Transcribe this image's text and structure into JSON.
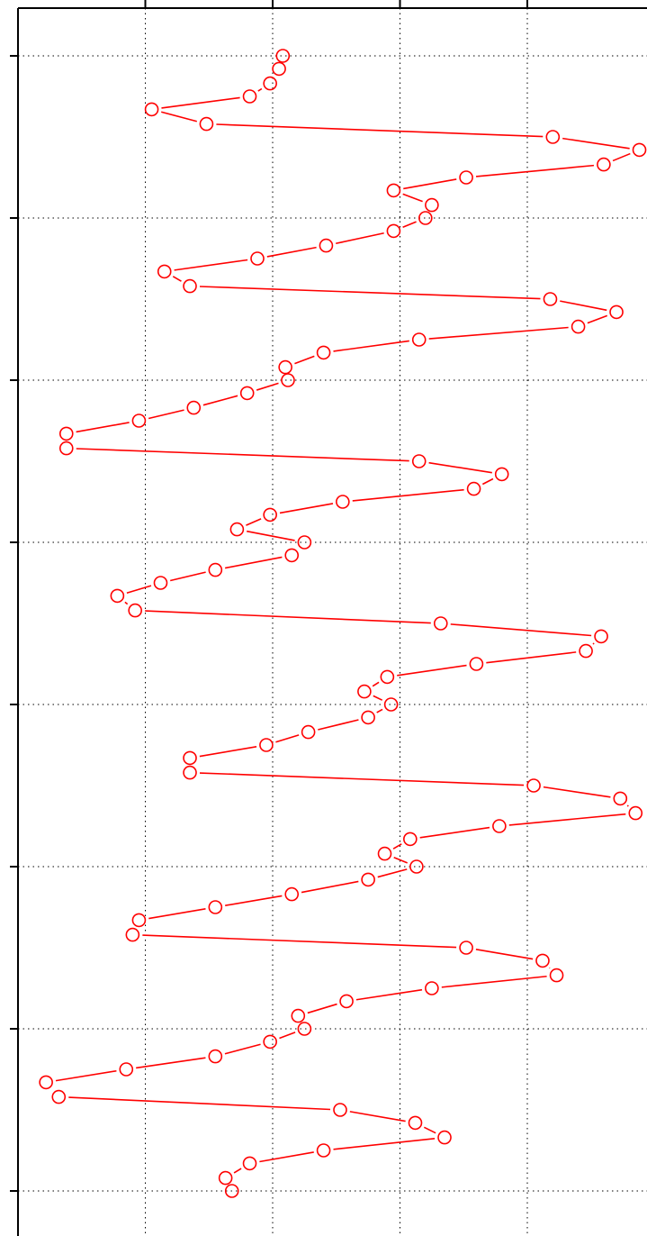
{
  "chart_data": {
    "type": "line",
    "orientation": "vertical-depth",
    "title": "",
    "xlabel": "",
    "ylabel": "",
    "xlim": [
      0,
      5
    ],
    "ylim": [
      0,
      7.5
    ],
    "y_inverted": true,
    "xticks": [
      1,
      2,
      3,
      4
    ],
    "yticks": [
      0,
      1,
      2,
      3,
      4,
      5,
      6,
      7
    ],
    "grid": true,
    "legend": "none",
    "series": [
      {
        "color": "#ff0000",
        "marker": "open-circle",
        "line": "solid",
        "points": [
          [
            2.08,
            0.0
          ],
          [
            2.05,
            0.08
          ],
          [
            1.98,
            0.17
          ],
          [
            1.82,
            0.25
          ],
          [
            1.05,
            0.33
          ],
          [
            1.48,
            0.42
          ],
          [
            4.2,
            0.5
          ],
          [
            4.88,
            0.58
          ],
          [
            4.6,
            0.67
          ],
          [
            3.52,
            0.75
          ],
          [
            2.95,
            0.83
          ],
          [
            3.25,
            0.92
          ],
          [
            3.2,
            1.0
          ],
          [
            2.95,
            1.08
          ],
          [
            2.42,
            1.17
          ],
          [
            1.88,
            1.25
          ],
          [
            1.15,
            1.33
          ],
          [
            1.35,
            1.42
          ],
          [
            4.18,
            1.5
          ],
          [
            4.7,
            1.58
          ],
          [
            4.4,
            1.67
          ],
          [
            3.15,
            1.75
          ],
          [
            2.4,
            1.83
          ],
          [
            2.1,
            1.92
          ],
          [
            2.12,
            2.0
          ],
          [
            1.8,
            2.08
          ],
          [
            1.38,
            2.17
          ],
          [
            0.95,
            2.25
          ],
          [
            0.38,
            2.33
          ],
          [
            0.38,
            2.42
          ],
          [
            3.15,
            2.5
          ],
          [
            3.8,
            2.58
          ],
          [
            3.58,
            2.67
          ],
          [
            2.55,
            2.75
          ],
          [
            1.98,
            2.83
          ],
          [
            1.72,
            2.92
          ],
          [
            2.25,
            3.0
          ],
          [
            2.15,
            3.08
          ],
          [
            1.55,
            3.17
          ],
          [
            1.12,
            3.25
          ],
          [
            0.78,
            3.33
          ],
          [
            0.92,
            3.42
          ],
          [
            3.32,
            3.5
          ],
          [
            4.58,
            3.58
          ],
          [
            4.46,
            3.67
          ],
          [
            3.6,
            3.75
          ],
          [
            2.9,
            3.83
          ],
          [
            2.72,
            3.92
          ],
          [
            2.93,
            4.0
          ],
          [
            2.75,
            4.08
          ],
          [
            2.28,
            4.17
          ],
          [
            1.95,
            4.25
          ],
          [
            1.35,
            4.33
          ],
          [
            1.35,
            4.42
          ],
          [
            4.05,
            4.5
          ],
          [
            4.73,
            4.58
          ],
          [
            4.85,
            4.67
          ],
          [
            3.78,
            4.75
          ],
          [
            3.08,
            4.83
          ],
          [
            2.88,
            4.92
          ],
          [
            3.13,
            5.0
          ],
          [
            2.75,
            5.08
          ],
          [
            2.15,
            5.17
          ],
          [
            1.55,
            5.25
          ],
          [
            0.95,
            5.33
          ],
          [
            0.9,
            5.42
          ],
          [
            3.52,
            5.5
          ],
          [
            4.12,
            5.58
          ],
          [
            4.23,
            5.67
          ],
          [
            3.25,
            5.75
          ],
          [
            2.58,
            5.83
          ],
          [
            2.2,
            5.92
          ],
          [
            2.25,
            6.0
          ],
          [
            1.98,
            6.08
          ],
          [
            1.55,
            6.17
          ],
          [
            0.85,
            6.25
          ],
          [
            0.22,
            6.33
          ],
          [
            0.32,
            6.42
          ],
          [
            2.53,
            6.5
          ],
          [
            3.12,
            6.58
          ],
          [
            3.35,
            6.67
          ],
          [
            2.4,
            6.75
          ],
          [
            1.82,
            6.83
          ],
          [
            1.63,
            6.92
          ],
          [
            1.68,
            7.0
          ]
        ]
      }
    ]
  }
}
